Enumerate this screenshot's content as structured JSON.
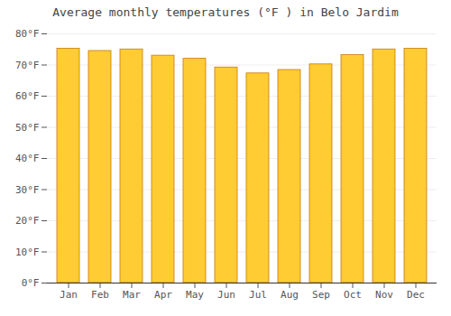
{
  "chart_data": {
    "type": "bar",
    "title": "Average monthly temperatures (°F ) in Belo Jardim",
    "categories": [
      "Jan",
      "Feb",
      "Mar",
      "Apr",
      "May",
      "Jun",
      "Jul",
      "Aug",
      "Sep",
      "Oct",
      "Nov",
      "Dec"
    ],
    "values": [
      75.2,
      74.5,
      75.0,
      73.0,
      72.0,
      69.2,
      67.3,
      68.4,
      70.2,
      73.2,
      75.0,
      75.2
    ],
    "color": "#FFCC33",
    "ylim": [
      0,
      80
    ],
    "yticks": [
      {
        "value": 0,
        "label": "0°F"
      },
      {
        "value": 10,
        "label": "10°F"
      },
      {
        "value": 20,
        "label": "20°F"
      },
      {
        "value": 30,
        "label": "30°F"
      },
      {
        "value": 40,
        "label": "40°F"
      },
      {
        "value": 50,
        "label": "50°F"
      },
      {
        "value": 60,
        "label": "60°F"
      },
      {
        "value": 70,
        "label": "70°F"
      },
      {
        "value": 80,
        "label": "80°F"
      }
    ],
    "grid": true
  }
}
